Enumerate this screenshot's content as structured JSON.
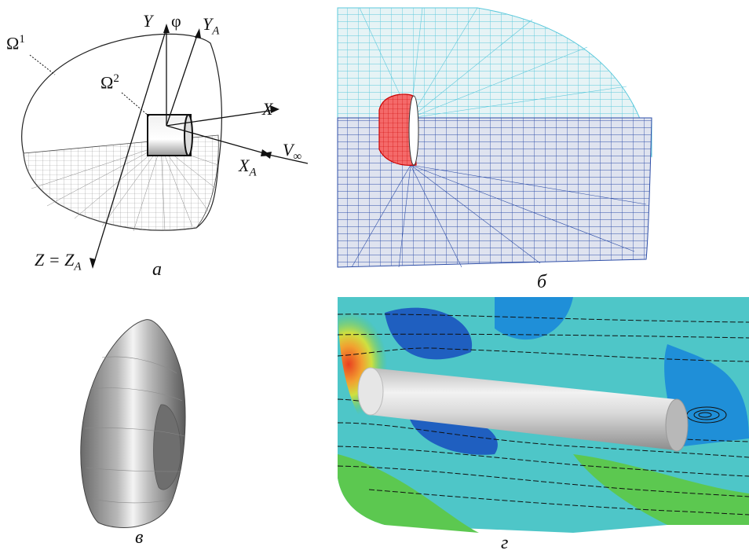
{
  "panels": {
    "a": {
      "caption": "а",
      "omega1": "Ω",
      "omega1_sup": "1",
      "omega2": "Ω",
      "omega2_sup": "2",
      "axis_y": "Y",
      "axis_phi": "φ",
      "axis_ya": "Y",
      "axis_ya_sub": "A",
      "axis_x": "X",
      "axis_xa": "X",
      "axis_xa_sub": "A",
      "v_inf": "V",
      "v_inf_sub": "∞",
      "axis_z": "Z = Z",
      "axis_z_sub": "A"
    },
    "b": {
      "caption": "б"
    },
    "c": {
      "caption": "в"
    },
    "d": {
      "caption": "г"
    }
  },
  "colors": {
    "mesh_light": "#5cc9dc",
    "mesh_dark": "#2f4fa8",
    "body_red": "#e02020",
    "flow_blue": "#1f8fd8",
    "flow_cyan": "#4ec6c8",
    "flow_green": "#5cc850",
    "flow_red": "#e84020"
  }
}
